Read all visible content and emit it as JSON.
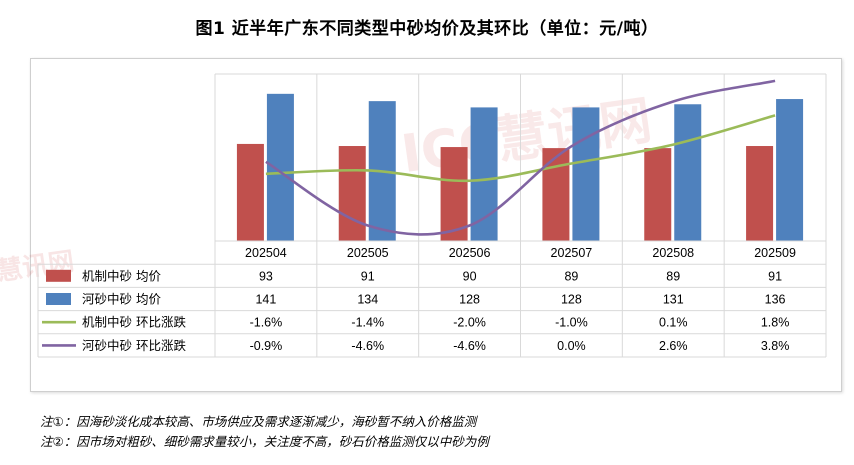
{
  "title": "图1  近半年广东不同类型中砂均价及其环比（单位：元/吨）",
  "watermark": {
    "logo": "ICC慧讯网",
    "side": "慧讯网"
  },
  "notes": [
    "注①：因海砂淡化成本较高、市场供应及需求逐渐减少，海砂暂不纳入价格监测",
    "注②：因市场对粗砂、细砂需求量较小，关注度不高，砂石价格监测仅以中砂为例"
  ],
  "colors": {
    "bar_machine": "#c0504d",
    "bar_river": "#4f81bd",
    "line_machine": "#9bbb59",
    "line_river": "#8064a2",
    "grid": "#d9d9d9"
  },
  "chart_data": {
    "type": "bar",
    "categories": [
      "202504",
      "202505",
      "202506",
      "202507",
      "202508",
      "202509"
    ],
    "series": [
      {
        "name": "机制中砂 均价",
        "type": "bar",
        "values": [
          93,
          91,
          90,
          89,
          89,
          91
        ]
      },
      {
        "name": "河砂中砂 均价",
        "type": "bar",
        "values": [
          141,
          134,
          128,
          128,
          131,
          136
        ]
      },
      {
        "name": "机制中砂 环比涨跌",
        "type": "line",
        "values": [
          -1.6,
          -1.4,
          -2.0,
          -1.0,
          0.1,
          1.8
        ],
        "labels": [
          "-1.6%",
          "-1.4%",
          "-2.0%",
          "-1.0%",
          "0.1%",
          "1.8%"
        ]
      },
      {
        "name": "河砂中砂 环比涨跌",
        "type": "line",
        "values": [
          -0.9,
          -4.6,
          -4.6,
          0.0,
          2.6,
          3.8
        ],
        "labels": [
          "-0.9%",
          "-4.6%",
          "-4.6%",
          "0.0%",
          "2.6%",
          "3.8%"
        ]
      }
    ],
    "table": true,
    "legend": "data-table"
  }
}
